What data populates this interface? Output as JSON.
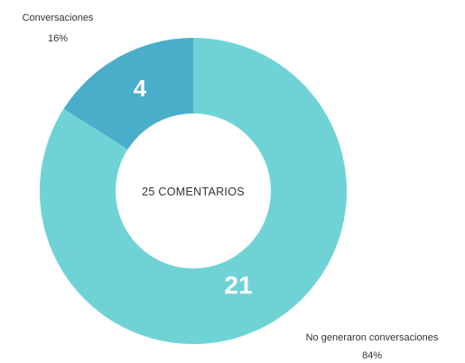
{
  "chart_data": {
    "type": "pie",
    "variant": "donut",
    "center_label": "25 COMENTARIOS",
    "slices": [
      {
        "value": 4,
        "value_label": "4",
        "label": "Conversaciones",
        "percent_label": "16%",
        "color": "#4aaecb"
      },
      {
        "value": 21,
        "value_label": "21",
        "label": "No generaron conversaciones",
        "percent_label": "84%",
        "color": "#6fd3d6"
      }
    ]
  }
}
